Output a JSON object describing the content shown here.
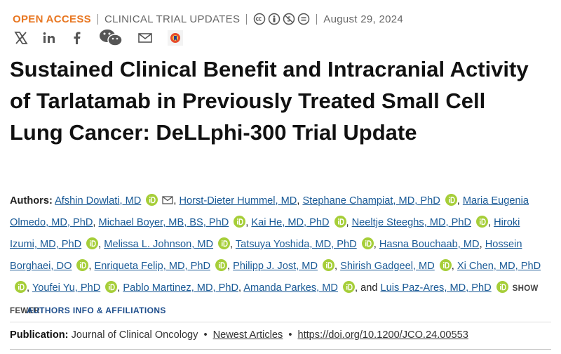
{
  "header": {
    "access": "OPEN ACCESS",
    "section": "CLINICAL TRIAL UPDATES",
    "date": "August 29, 2024"
  },
  "article": {
    "title": "Sustained Clinical Benefit and Intracranial Activity of Tarlatamab in Previously Treated Small Cell Lung Cancer: DeLLphi-300 Trial Update"
  },
  "authors": {
    "label": "Authors:",
    "separator": ",",
    "last_joiner": "and",
    "show_toggle": "SHOW FEWER",
    "affiliations_link": "AUTHORS INFO & AFFILIATIONS",
    "list": [
      {
        "name": "Afshin Dowlati, MD",
        "orcid": true,
        "email": true
      },
      {
        "name": "Horst-Dieter Hummel, MD",
        "orcid": false
      },
      {
        "name": "Stephane Champiat, MD, PhD",
        "orcid": true
      },
      {
        "name": "Maria Eugenia Olmedo, MD, PhD",
        "orcid": false
      },
      {
        "name": "Michael Boyer, MB, BS, PhD",
        "orcid": true
      },
      {
        "name": "Kai He, MD, PhD",
        "orcid": true
      },
      {
        "name": "Neeltje Steeghs, MD, PhD",
        "orcid": true
      },
      {
        "name": "Hiroki Izumi, MD, PhD",
        "orcid": true
      },
      {
        "name": "Melissa L. Johnson, MD",
        "orcid": true
      },
      {
        "name": "Tatsuya Yoshida, MD, PhD",
        "orcid": true
      },
      {
        "name": "Hasna Bouchaab, MD",
        "orcid": false
      },
      {
        "name": "Hossein Borghaei, DO",
        "orcid": true
      },
      {
        "name": "Enriqueta Felip, MD, PhD",
        "orcid": true
      },
      {
        "name": "Philipp J. Jost, MD",
        "orcid": true
      },
      {
        "name": "Shirish Gadgeel, MD",
        "orcid": true
      },
      {
        "name": "Xi Chen, MD, PhD",
        "orcid": true
      },
      {
        "name": "Youfei Yu, PhD",
        "orcid": true
      },
      {
        "name": "Pablo Martinez, MD, PhD",
        "orcid": false
      },
      {
        "name": "Amanda Parkes, MD",
        "orcid": true
      },
      {
        "name": "Luis Paz-Ares, MD, PhD",
        "orcid": true
      }
    ]
  },
  "publication": {
    "label": "Publication:",
    "journal": "Journal of Clinical Oncology",
    "bullet": "•",
    "issue": "Newest Articles",
    "doi": "https://doi.org/10.1200/JCO.24.00553"
  }
}
